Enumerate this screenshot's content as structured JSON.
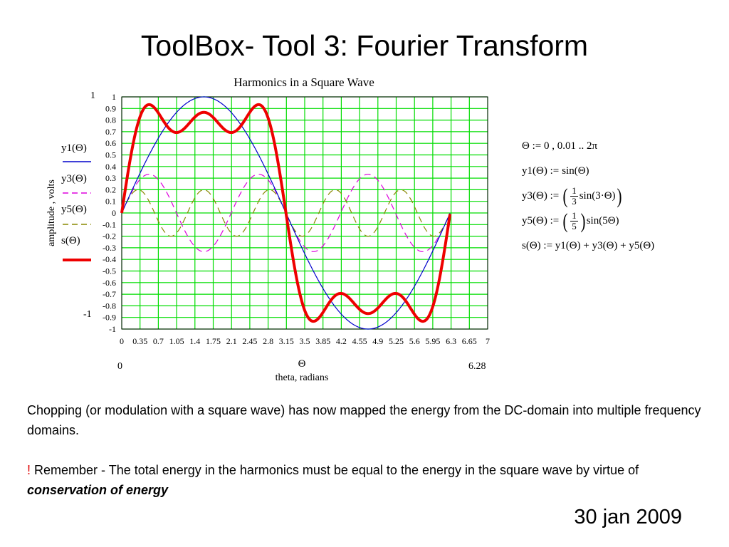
{
  "slide": {
    "title": "ToolBox- Tool 3: Fourier Transform",
    "date": "30 jan 2009"
  },
  "description": {
    "paragraph1": "Chopping (or modulation with a square wave) has now mapped the energy from the DC-domain into multiple frequency domains.",
    "exclamation": "!",
    "paragraph2_text": " Remember - The total energy in the harmonics must be equal to the energy in the square wave by virtue of ",
    "paragraph2_emphasis": "conservation of energy"
  },
  "formulas": {
    "theta_def": "Θ := 0 , 0.01 .. 2π",
    "y1_lhs": "y1(Θ) :=",
    "y1_rhs": "sin(Θ)",
    "y3_lhs": "y3(Θ) :=",
    "y3_frac_num": "1",
    "y3_frac_den": "3",
    "y3_rhs": "sin(3·Θ)",
    "y5_lhs": "y5(Θ) :=",
    "y5_frac_num": "1",
    "y5_frac_den": "5",
    "y5_rhs": "sin(5Θ)",
    "s_def": "s(Θ) := y1(Θ) + y3(Θ) + y5(Θ)"
  },
  "chart_data": {
    "type": "line",
    "title": "Harmonics in a Square Wave",
    "xlabel_symbol": "Θ",
    "xlabel": "theta, radians",
    "ylabel": "amplitude , volts",
    "xlim": [
      0,
      7
    ],
    "ylim": [
      -1,
      1
    ],
    "x_ticks": [
      "0",
      "0.35",
      "0.7",
      "1.05",
      "1.4",
      "1.75",
      "2.1",
      "2.45",
      "2.8",
      "3.15",
      "3.5",
      "3.85",
      "4.2",
      "4.55",
      "4.9",
      "5.25",
      "5.6",
      "5.95",
      "6.3",
      "6.65",
      "7"
    ],
    "y_ticks": [
      "1",
      "0.9",
      "0.8",
      "0.7",
      "0.6",
      "0.5",
      "0.4",
      "0.3",
      "0.2",
      "0.1",
      "0",
      "-0.1",
      "-0.2",
      "-0.3",
      "-0.4",
      "-0.5",
      "-0.6",
      "-0.7",
      "-0.8",
      "-0.9",
      "-1"
    ],
    "x_range_min_label": "0",
    "x_range_max_label": "6.28",
    "y_range_max_label": "1",
    "y_range_min_label": "-1",
    "grid": true,
    "grid_color": "#00dd00",
    "legend_position": "left",
    "theta_step": 0.01,
    "theta_max": 6.2832,
    "series": [
      {
        "name": "y1(Θ)",
        "formula": "sin(Θ)",
        "harmonic": 1,
        "coefficient": 1,
        "color": "#0000cc",
        "style": "solid"
      },
      {
        "name": "y3(Θ)",
        "formula": "(1/3)sin(3Θ)",
        "harmonic": 3,
        "coefficient": 0.3333,
        "color": "#dd00dd",
        "style": "dashed"
      },
      {
        "name": "y5(Θ)",
        "formula": "(1/5)sin(5Θ)",
        "harmonic": 5,
        "coefficient": 0.2,
        "color": "#888800",
        "style": "dashed"
      },
      {
        "name": "s(Θ)",
        "formula": "y1(Θ)+y3(Θ)+y5(Θ)",
        "sum_of": [
          1,
          3,
          5
        ],
        "color": "#ee0000",
        "style": "thick"
      }
    ]
  }
}
